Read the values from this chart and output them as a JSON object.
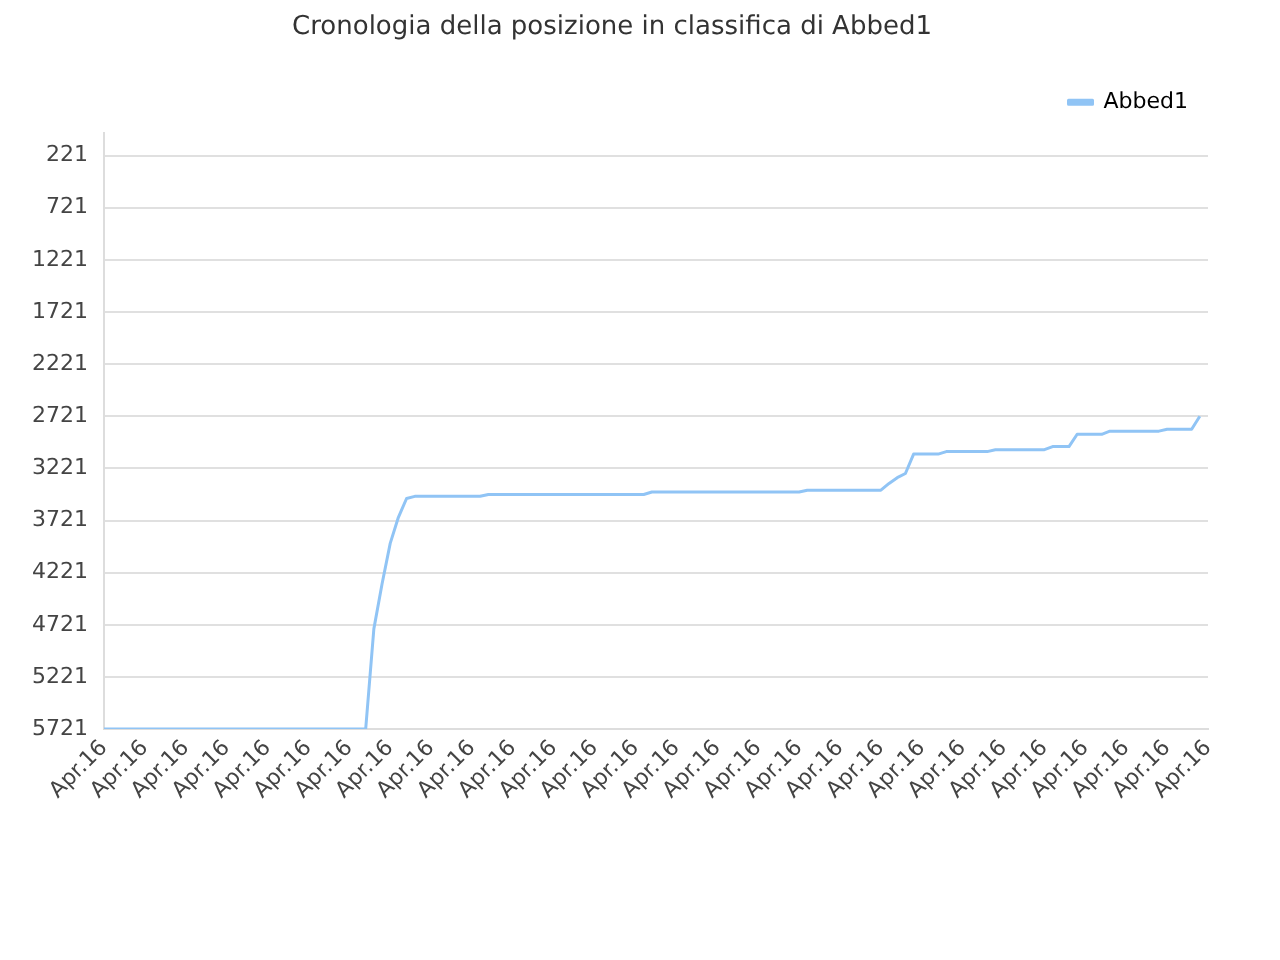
{
  "chart_data": {
    "type": "line",
    "title": "Cronologia della posizione in classifica di Abbed1",
    "categories": [
      "Apr.16",
      null,
      null,
      null,
      null,
      "Apr.16",
      null,
      null,
      null,
      null,
      "Apr.16",
      null,
      null,
      null,
      null,
      "Apr.16",
      null,
      null,
      null,
      null,
      "Apr.16",
      null,
      null,
      null,
      null,
      "Apr.16",
      null,
      null,
      null,
      null,
      "Apr.16",
      null,
      null,
      null,
      null,
      "Apr.16",
      null,
      null,
      null,
      null,
      "Apr.16",
      null,
      null,
      null,
      null,
      "Apr.16",
      null,
      null,
      null,
      null,
      "Apr.16",
      null,
      null,
      null,
      null,
      "Apr.16",
      null,
      null,
      null,
      null,
      "Apr.16",
      null,
      null,
      null,
      null,
      "Apr.16",
      null,
      null,
      null,
      null,
      "Apr.16",
      null,
      null,
      null,
      null,
      "Apr.16",
      null,
      null,
      null,
      null,
      "Apr.16",
      null,
      null,
      null,
      null,
      "Apr.16",
      null,
      null,
      null,
      null,
      "Apr.16",
      null,
      null,
      null,
      null,
      "Apr.16",
      null,
      null,
      null,
      null,
      "Apr.16",
      null,
      null,
      null,
      null,
      "Apr.16",
      null,
      null,
      null,
      null,
      "Apr.16",
      null,
      null,
      null,
      null,
      "Apr.16",
      null,
      null,
      null,
      null,
      "Apr.16",
      null,
      null,
      null,
      null,
      "Apr.16",
      null,
      null,
      null,
      null,
      "Apr.16",
      null,
      null,
      null,
      null,
      "Apr.16"
    ],
    "series": [
      {
        "name": "Abbed1",
        "color": "#90c4f5",
        "values": [
          5721,
          5721,
          5721,
          5721,
          5721,
          5721,
          5721,
          5721,
          5721,
          5721,
          5721,
          5721,
          5721,
          5721,
          5721,
          5721,
          5721,
          5721,
          5721,
          5721,
          5721,
          5721,
          5721,
          5721,
          5721,
          5721,
          5721,
          5721,
          5721,
          5721,
          5721,
          5721,
          5721,
          4760,
          4330,
          3940,
          3690,
          3510,
          3489,
          3489,
          3489,
          3489,
          3489,
          3489,
          3489,
          3489,
          3489,
          3471,
          3471,
          3471,
          3471,
          3471,
          3471,
          3471,
          3471,
          3471,
          3471,
          3471,
          3471,
          3471,
          3471,
          3471,
          3471,
          3471,
          3471,
          3471,
          3471,
          3448,
          3448,
          3448,
          3448,
          3448,
          3448,
          3448,
          3448,
          3448,
          3448,
          3448,
          3448,
          3448,
          3448,
          3448,
          3448,
          3448,
          3448,
          3448,
          3430,
          3430,
          3430,
          3430,
          3430,
          3430,
          3430,
          3430,
          3430,
          3430,
          3365,
          3310,
          3270,
          3084,
          3084,
          3084,
          3084,
          3060,
          3060,
          3060,
          3060,
          3060,
          3060,
          3042,
          3042,
          3042,
          3042,
          3042,
          3042,
          3042,
          3012,
          3012,
          3012,
          2894,
          2894,
          2894,
          2894,
          2864,
          2864,
          2864,
          2864,
          2864,
          2864,
          2864,
          2846,
          2846,
          2846,
          2846,
          2721,
          null
        ]
      }
    ],
    "ylim": [
      5721,
      7
    ],
    "yticks": [
      221,
      721,
      1221,
      1721,
      2221,
      2721,
      3221,
      3721,
      4221,
      4721,
      5221,
      5721
    ],
    "grid": "y",
    "legend": "top right",
    "marker": "none",
    "line_style": "solid"
  }
}
